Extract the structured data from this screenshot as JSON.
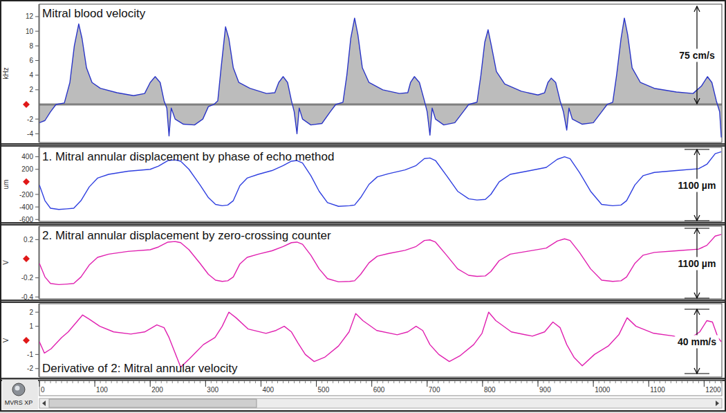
{
  "chart_data": [
    {
      "type": "area",
      "title": "Mitral blood velocity",
      "ylabel": "kHz",
      "color": "#2a35c8",
      "x": [
        0,
        10,
        20,
        30,
        45,
        55,
        63,
        71,
        77,
        85,
        95,
        110,
        140,
        170,
        190,
        200,
        209,
        218,
        225,
        230,
        234,
        238,
        245,
        260,
        280,
        295,
        305,
        315,
        322,
        328,
        336,
        342,
        350,
        360,
        380,
        410,
        425,
        432,
        440,
        448,
        455,
        460,
        465,
        469,
        475,
        490,
        510,
        525,
        535,
        548,
        555,
        562,
        569,
        575,
        583,
        595,
        620,
        650,
        665,
        670,
        677,
        686,
        695,
        700,
        705,
        709,
        715,
        730,
        750,
        765,
        775,
        790,
        797,
        804,
        810,
        816,
        825,
        840,
        870,
        900,
        912,
        918,
        924,
        932,
        940,
        946,
        952,
        956,
        962,
        980,
        1000,
        1015,
        1025,
        1035,
        1042,
        1050,
        1056,
        1062,
        1070,
        1085,
        1110,
        1150,
        1180,
        1195,
        1206,
        1214,
        1222,
        1228,
        1231
      ],
      "values": [
        -2.5,
        -2.2,
        -1,
        0,
        0.2,
        3,
        8,
        11,
        9,
        5,
        3,
        2.2,
        1.6,
        1.2,
        1.5,
        3,
        3.8,
        3,
        0.5,
        -0.5,
        -4.3,
        -0.5,
        -2,
        -2.7,
        -2.8,
        -2,
        -0.3,
        0,
        0.5,
        5,
        10.6,
        9,
        5,
        3,
        2.2,
        1.5,
        1.6,
        3,
        3.8,
        3,
        0.5,
        -1,
        -4,
        -0.5,
        -2,
        -2.8,
        -2.6,
        -1,
        0,
        0.3,
        4,
        9,
        11.8,
        9.5,
        5,
        3,
        2,
        1.5,
        1.6,
        3,
        3.8,
        3,
        0.5,
        -1,
        -4.2,
        -0.5,
        -2,
        -2.8,
        -2.5,
        -1,
        0,
        0.3,
        4,
        8.5,
        10.2,
        8,
        4.5,
        2.8,
        1.8,
        1.3,
        1.6,
        3,
        3.6,
        3,
        0.5,
        -1,
        -3.5,
        -0.5,
        -2,
        -2.7,
        -2.5,
        -1,
        0,
        0.3,
        4,
        9,
        11.8,
        9.5,
        5,
        3,
        2.2,
        1.7,
        1.5,
        2.5,
        3.8,
        3,
        0.5,
        -1,
        -4.5
      ],
      "xlim": [
        0,
        1232
      ],
      "ylim": [
        -5.2,
        13.7
      ],
      "yticks": [
        12,
        10,
        8,
        6,
        4,
        2,
        -2,
        -4
      ],
      "tick_labels": "y",
      "annotations": [
        "75 cm/s"
      ]
    },
    {
      "type": "line",
      "title": "1. Mitral annular displacement by phase of echo method",
      "ylabel": "um",
      "color": "#2f3fe0",
      "x": [
        0,
        10,
        20,
        35,
        50,
        62,
        75,
        90,
        105,
        125,
        160,
        200,
        215,
        232,
        245,
        255,
        270,
        290,
        305,
        318,
        330,
        340,
        350,
        362,
        375,
        395,
        420,
        440,
        455,
        465,
        475,
        490,
        505,
        520,
        540,
        560,
        569,
        580,
        595,
        610,
        630,
        660,
        680,
        695,
        705,
        715,
        735,
        755,
        775,
        790,
        805,
        815,
        830,
        850,
        880,
        915,
        935,
        948,
        958,
        975,
        995,
        1015,
        1035,
        1050,
        1060,
        1075,
        1090,
        1110,
        1150,
        1190,
        1205,
        1220,
        1231
      ],
      "values": [
        -50,
        -300,
        -420,
        -440,
        -430,
        -420,
        -300,
        -80,
        60,
        120,
        170,
        200,
        250,
        340,
        350,
        330,
        200,
        -50,
        -250,
        -360,
        -380,
        -370,
        -300,
        -60,
        60,
        120,
        180,
        260,
        330,
        340,
        300,
        100,
        -150,
        -330,
        -390,
        -380,
        -370,
        -250,
        -40,
        80,
        130,
        190,
        260,
        370,
        380,
        340,
        100,
        -150,
        -270,
        -290,
        -280,
        -200,
        0,
        120,
        170,
        230,
        360,
        400,
        370,
        150,
        -150,
        -360,
        -380,
        -370,
        -300,
        -50,
        100,
        150,
        180,
        210,
        280,
        450,
        480
      ],
      "xlim": [
        0,
        1232
      ],
      "ylim": [
        -630,
        550
      ],
      "yticks": [
        400,
        200,
        -200,
        -400,
        -600
      ],
      "tick_labels": "y",
      "annotations": [
        "1100 µm"
      ]
    },
    {
      "type": "line",
      "title": "2. Mitral annular displacement by zero-crossing counter",
      "ylabel": "V",
      "color": "#e020b0",
      "x": [
        0,
        10,
        20,
        35,
        50,
        62,
        75,
        90,
        105,
        125,
        160,
        200,
        215,
        232,
        245,
        255,
        270,
        290,
        305,
        318,
        330,
        340,
        350,
        362,
        375,
        395,
        420,
        440,
        455,
        465,
        475,
        490,
        505,
        520,
        540,
        560,
        569,
        580,
        595,
        610,
        630,
        660,
        680,
        695,
        705,
        715,
        735,
        755,
        775,
        790,
        805,
        815,
        830,
        850,
        880,
        915,
        935,
        948,
        958,
        975,
        995,
        1015,
        1035,
        1050,
        1060,
        1075,
        1090,
        1110,
        1150,
        1190,
        1205,
        1220,
        1231
      ],
      "values": [
        -0.049,
        -0.191,
        -0.259,
        -0.271,
        -0.265,
        -0.259,
        -0.191,
        -0.066,
        0.014,
        0.048,
        0.077,
        0.094,
        0.123,
        0.174,
        0.18,
        0.168,
        0.094,
        -0.049,
        -0.163,
        -0.225,
        -0.237,
        -0.231,
        -0.191,
        -0.054,
        0.014,
        0.048,
        0.083,
        0.128,
        0.168,
        0.174,
        0.151,
        0.037,
        -0.106,
        -0.208,
        -0.242,
        -0.237,
        -0.231,
        -0.163,
        -0.043,
        0.026,
        0.054,
        0.088,
        0.128,
        0.191,
        0.197,
        0.174,
        0.037,
        -0.106,
        -0.174,
        -0.185,
        -0.18,
        -0.134,
        -0.02,
        0.048,
        0.077,
        0.111,
        0.185,
        0.208,
        0.191,
        0.066,
        -0.106,
        -0.225,
        -0.237,
        -0.231,
        -0.191,
        -0.049,
        0.037,
        0.066,
        0.083,
        0.1,
        0.14,
        0.237,
        0.254
      ],
      "xlim": [
        0,
        1232
      ],
      "ylim": [
        -0.42,
        0.34
      ],
      "yticks": [
        0.2,
        -0.2,
        -0.4
      ],
      "tick_labels": "y",
      "annotations": [
        "1100 µm"
      ]
    },
    {
      "type": "line",
      "title": "Derivative of 2: Mitral annular velocity",
      "ylabel": "V",
      "color": "#e020b0",
      "x": [
        0,
        9,
        21,
        40,
        52,
        65,
        78,
        90,
        109,
        134,
        165,
        190,
        212,
        225,
        234,
        242,
        255,
        271,
        296,
        317,
        330,
        342,
        355,
        377,
        409,
        427,
        442,
        455,
        467,
        480,
        496,
        515,
        540,
        559,
        571,
        584,
        609,
        646,
        665,
        680,
        692,
        705,
        721,
        740,
        759,
        784,
        799,
        811,
        824,
        852,
        890,
        912,
        927,
        940,
        952,
        965,
        980,
        1002,
        1027,
        1046,
        1061,
        1077,
        1109,
        1146,
        1177,
        1192,
        1205,
        1215,
        1225,
        1231
      ],
      "values": [
        -0.1,
        -0.9,
        -0.6,
        0.2,
        0.6,
        1.2,
        1.8,
        1.5,
        1,
        0.6,
        0.45,
        0.6,
        1.1,
        0.9,
        0.2,
        -0.6,
        -1.9,
        -1.3,
        -0.3,
        0.2,
        1,
        2,
        1.6,
        0.8,
        0.5,
        0.7,
        1,
        0.6,
        -0.2,
        -1,
        -1.5,
        -1.2,
        -0.4,
        0.6,
        1.9,
        1.4,
        0.7,
        0.4,
        0.6,
        1,
        0.7,
        -0.3,
        -1,
        -1.5,
        -1.1,
        -0.3,
        0.5,
        2,
        1.4,
        0.6,
        0.3,
        0.6,
        1.3,
        0.9,
        -0.3,
        -1.2,
        -1.8,
        -1,
        -0.4,
        0.4,
        1.6,
        1,
        0.5,
        0.3,
        0.2,
        0.6,
        1.4,
        1.3,
        0.2,
        -0.1
      ],
      "xlim": [
        0,
        1232
      ],
      "ylim": [
        -2.6,
        2.6
      ],
      "yticks": [
        2,
        1,
        -1,
        -2
      ],
      "xticks": [
        0,
        100,
        200,
        300,
        400,
        500,
        600,
        700,
        800,
        900,
        1000,
        1100,
        1200
      ],
      "annotations": [
        "40 mm/s"
      ]
    }
  ],
  "footer": {
    "logo_text": "MVRS XP"
  }
}
